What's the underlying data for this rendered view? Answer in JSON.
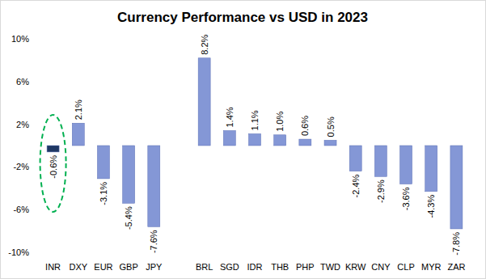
{
  "chart_data": {
    "type": "bar",
    "title": "Currency Performance vs USD in 2023",
    "categories": [
      "INR",
      "DXY",
      "EUR",
      "GBP",
      "JPY",
      null,
      "BRL",
      "SGD",
      "IDR",
      "THB",
      "PHP",
      "TWD",
      "KRW",
      "CNY",
      "CLP",
      "MYR",
      "ZAR"
    ],
    "values": [
      -0.6,
      2.1,
      -3.1,
      -5.4,
      -7.6,
      null,
      8.2,
      1.4,
      1.1,
      1.0,
      0.6,
      0.5,
      -2.4,
      -2.9,
      -3.6,
      -4.3,
      -7.8
    ],
    "value_labels": [
      "-0.6%",
      "2.1%",
      "-3.1%",
      "-5.4%",
      "-7.6%",
      null,
      "8.2%",
      "1.4%",
      "1.1%",
      "1.0%",
      "0.6%",
      "0.5%",
      "-2.4%",
      "-2.9%",
      "-3.6%",
      "-4.3%",
      "-7.8%"
    ],
    "colors": [
      "#1f3864",
      "#8497d6",
      "#8497d6",
      "#8497d6",
      "#8497d6",
      null,
      "#8497d6",
      "#8497d6",
      "#8497d6",
      "#8497d6",
      "#8497d6",
      "#8497d6",
      "#8497d6",
      "#8497d6",
      "#8497d6",
      "#8497d6",
      "#8497d6"
    ],
    "ylim": [
      -10,
      10
    ],
    "yticks": [
      {
        "value": -10,
        "label": "-10%"
      },
      {
        "value": -6,
        "label": "-6%"
      },
      {
        "value": -2,
        "label": "-2%"
      },
      {
        "value": 2,
        "label": "2%"
      },
      {
        "value": 6,
        "label": "6%"
      },
      {
        "value": 10,
        "label": "10%"
      }
    ],
    "grid": false,
    "data_labels": true
  }
}
